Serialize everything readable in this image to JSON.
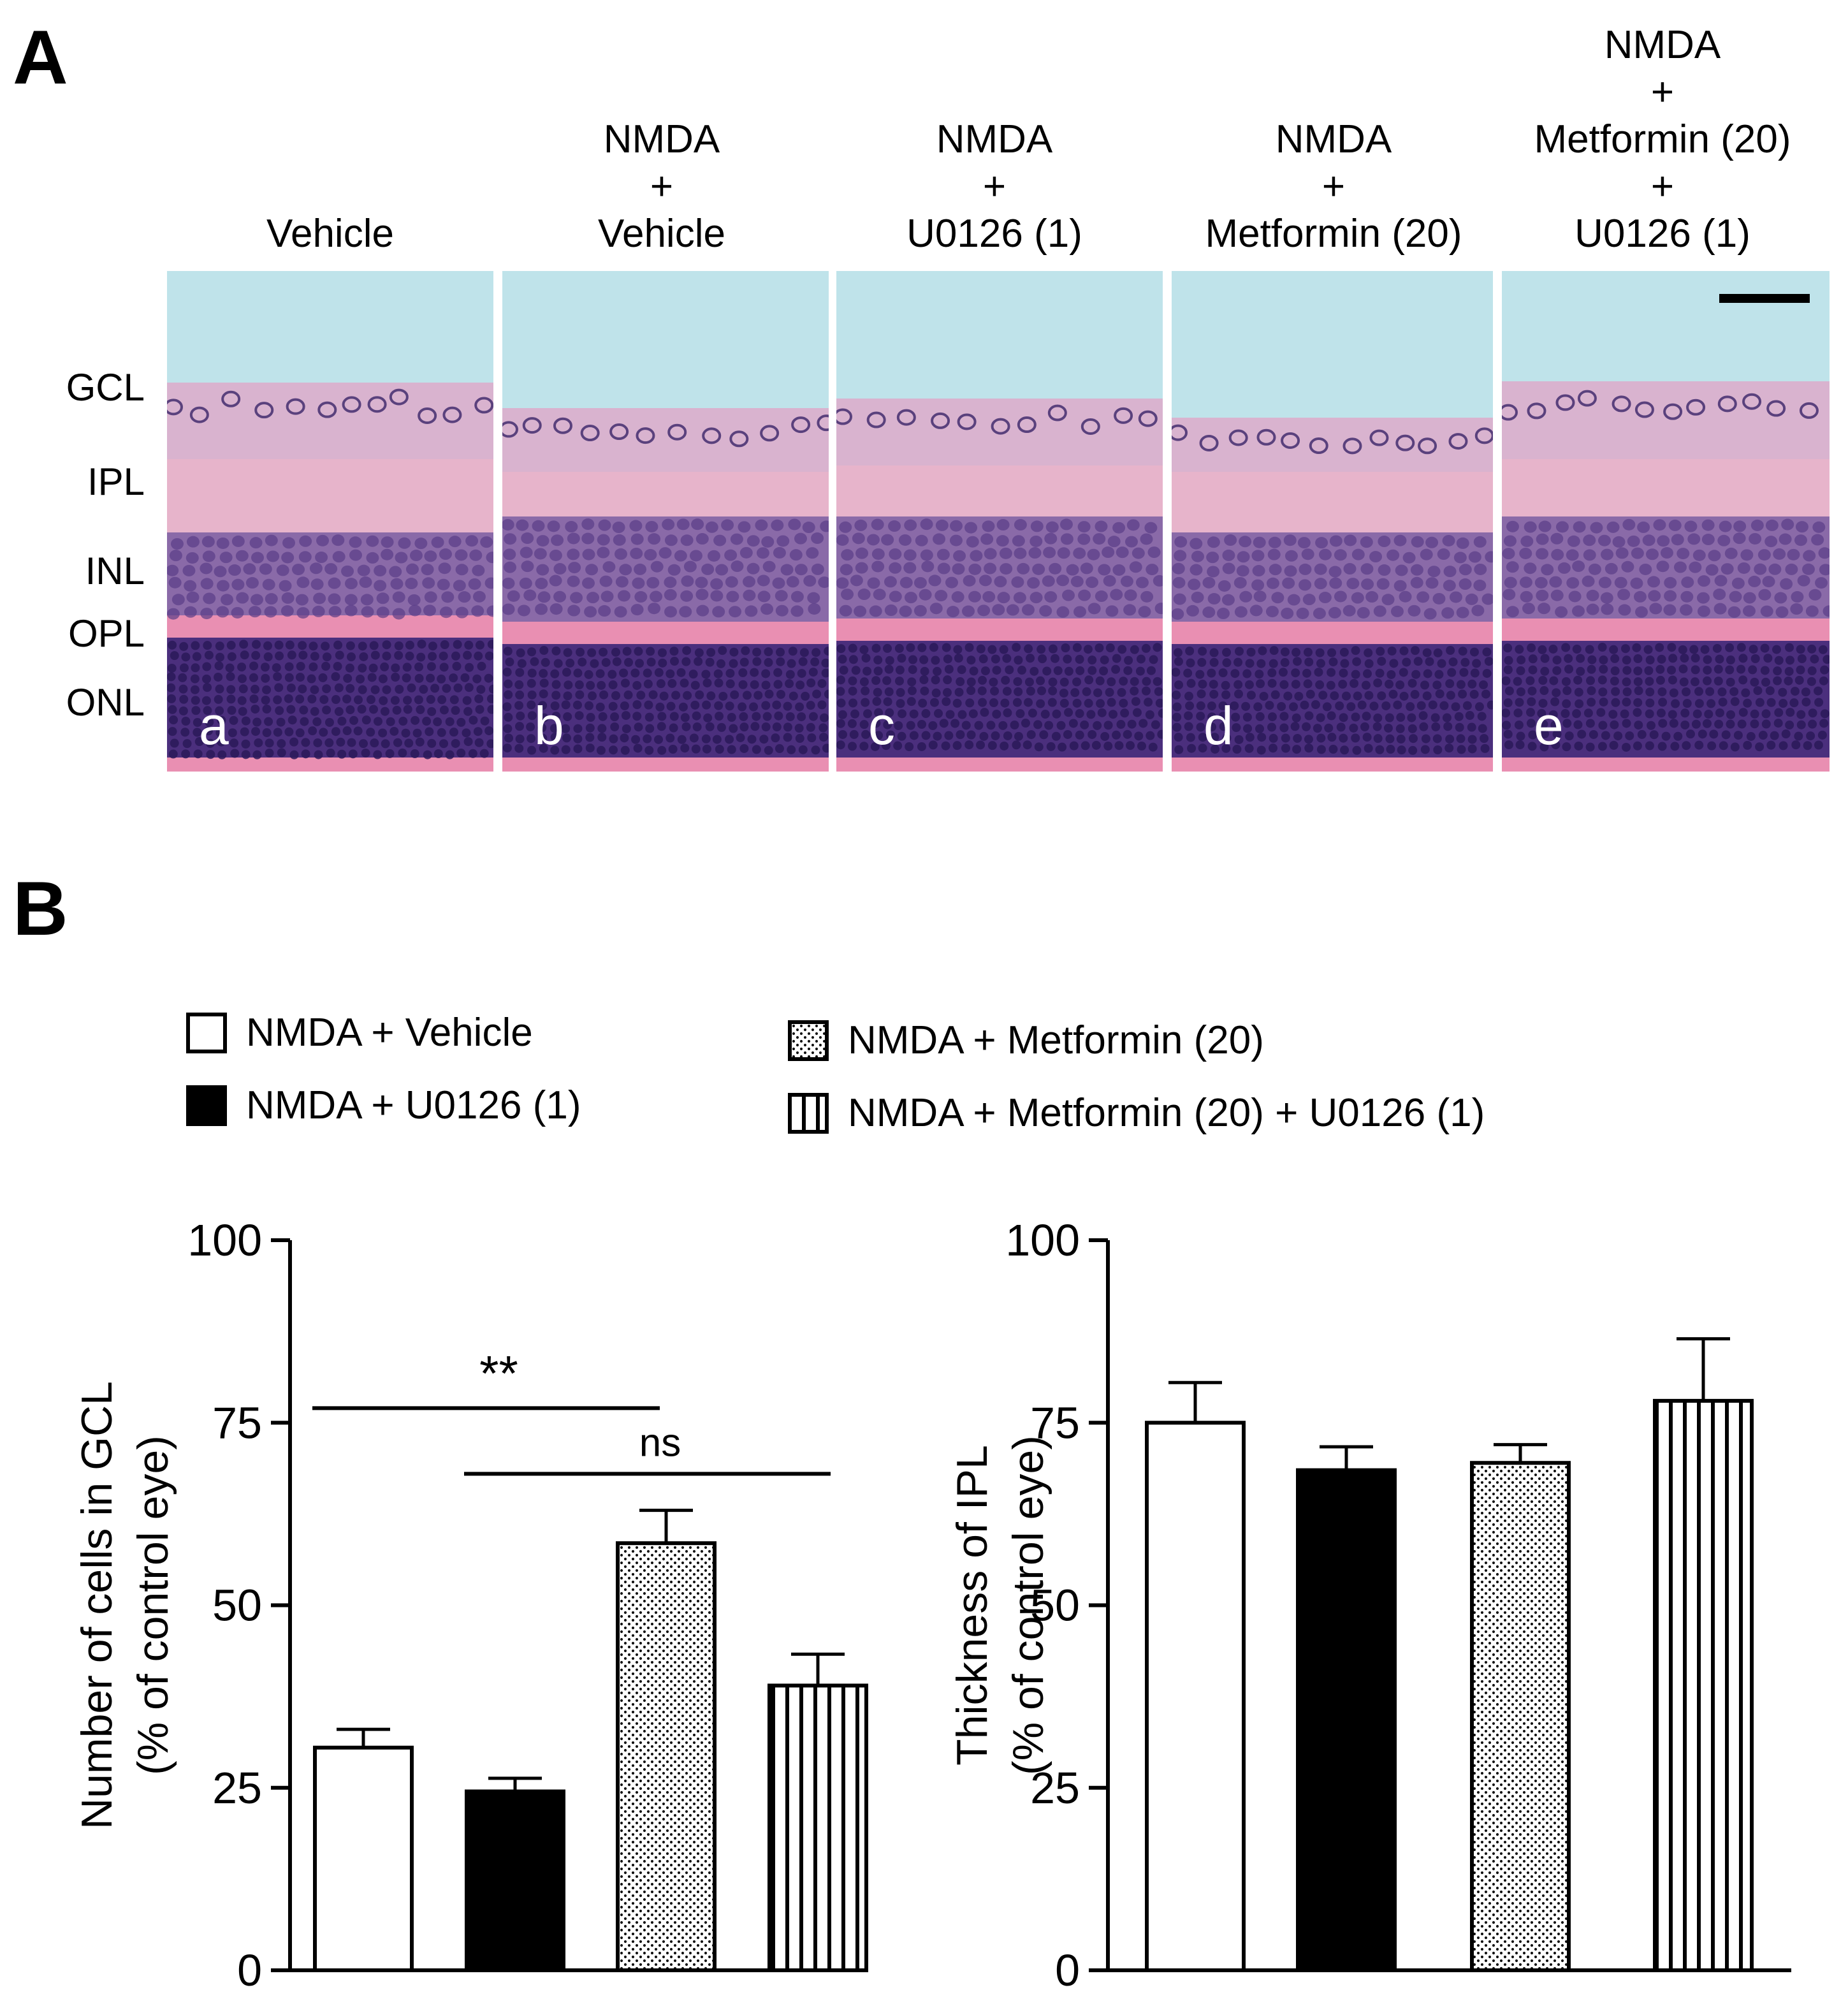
{
  "panel_a": {
    "letter": "A",
    "columns": [
      {
        "tag": "a",
        "lines": [
          "Vehicle"
        ]
      },
      {
        "tag": "b",
        "lines": [
          "NMDA",
          "+",
          "Vehicle"
        ]
      },
      {
        "tag": "c",
        "lines": [
          "NMDA",
          "+",
          "U0126 (1)"
        ]
      },
      {
        "tag": "d",
        "lines": [
          "NMDA",
          "+",
          "Metformin (20)"
        ]
      },
      {
        "tag": "e",
        "lines": [
          "NMDA",
          "+",
          "Metformin (20)",
          "+",
          "U0126 (1)"
        ]
      }
    ],
    "layers": [
      "GCL",
      "IPL",
      "INL",
      "OPL",
      "ONL"
    ]
  },
  "panel_b": {
    "letter": "B",
    "legend": [
      {
        "label": "NMDA + Vehicle",
        "pattern": "white"
      },
      {
        "label": "NMDA + U0126 (1)",
        "pattern": "black"
      },
      {
        "label": "NMDA + Metformin (20)",
        "pattern": "dots"
      },
      {
        "label": "NMDA + Metformin (20) + U0126 (1)",
        "pattern": "stripes"
      }
    ]
  },
  "colors": {
    "vitreous": "#bfe3ea",
    "ipl_pink": "#e7b4cb",
    "opl_pink": "#e98fb2",
    "inl_purple": "#8a6aa8",
    "onl_purple": "#4b2f7d",
    "nucleus": "#3a2468"
  },
  "chart_data": [
    {
      "type": "bar",
      "title": "",
      "xlabel": "",
      "ylabel": "Number of cells in GCL",
      "ylabel2": "(% of control eye)",
      "ylim": [
        0,
        100
      ],
      "yticks": [
        0,
        25,
        50,
        75,
        100
      ],
      "categories": [
        "NMDA + Vehicle",
        "NMDA + U0126 (1)",
        "NMDA + Metformin (20)",
        "NMDA + Metformin (20) + U0126 (1)"
      ],
      "values": [
        30.5,
        24.5,
        58.5,
        39
      ],
      "errors": [
        2.5,
        1.8,
        4.5,
        4.3
      ],
      "patterns": [
        "white",
        "black",
        "dots",
        "stripes"
      ],
      "annotations": [
        {
          "text": "**",
          "from": 0,
          "to": 2,
          "y": 77
        },
        {
          "text": "ns",
          "from": 1,
          "to": 3,
          "y": 68
        }
      ]
    },
    {
      "type": "bar",
      "title": "",
      "xlabel": "",
      "ylabel": "Thickness of IPL",
      "ylabel2": "(% of control eye)",
      "ylim": [
        0,
        100
      ],
      "yticks": [
        0,
        25,
        50,
        75,
        100
      ],
      "categories": [
        "NMDA + Vehicle",
        "NMDA + U0126 (1)",
        "NMDA + Metformin (20)",
        "NMDA + Metformin (20) + U0126 (1)"
      ],
      "values": [
        75,
        68.5,
        69.5,
        78
      ],
      "errors": [
        5.5,
        3.2,
        2.5,
        8.5
      ],
      "patterns": [
        "white",
        "black",
        "dots",
        "stripes"
      ],
      "annotations": []
    }
  ]
}
